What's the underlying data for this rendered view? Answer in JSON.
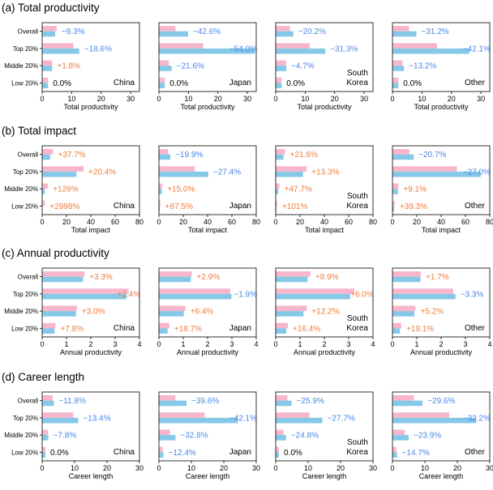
{
  "figure": {
    "row_labels": [
      "Overall",
      "Top 20%",
      "Middle 20%",
      "Low 20%"
    ],
    "colors": {
      "pink": "#f7b6cb",
      "blue": "#86c8e8",
      "negative": "#4a86e8",
      "positive": "#f07b3a",
      "zero": "#000000"
    }
  },
  "chart_data": [
    {
      "type": "bar",
      "title": "(a) Total productivity",
      "xlabel": "Total productivity",
      "xlim": [
        0,
        33
      ],
      "xticks": [
        0,
        10,
        20,
        30
      ],
      "panels": [
        {
          "region": "China",
          "pink": [
            4.9,
            10.6,
            3.4,
            2.0
          ],
          "blue": [
            4.4,
            12.6,
            3.4,
            2.0
          ],
          "changes": [
            "−9.3%",
            "−18.6%",
            "+1.8%",
            "0.0%"
          ]
        },
        {
          "region": "Japan",
          "pink": [
            5.6,
            15.0,
            3.4,
            2.0
          ],
          "blue": [
            9.9,
            32.5,
            4.3,
            2.0
          ],
          "changes": [
            "−42.6%",
            "−54.0%",
            "−21.6%",
            "0.0%"
          ]
        },
        {
          "region": "South Korea",
          "pink": [
            4.8,
            11.5,
            3.5,
            2.0
          ],
          "blue": [
            6.0,
            16.8,
            3.6,
            2.0
          ],
          "changes": [
            "−20.2%",
            "−31.3%",
            "−4.7%",
            "0.0%"
          ]
        },
        {
          "region": "Other",
          "pink": [
            5.6,
            15.1,
            3.4,
            2.0
          ],
          "blue": [
            8.1,
            26.1,
            3.9,
            2.0
          ],
          "changes": [
            "−31.2%",
            "−42.1%",
            "−13.2%",
            "0.0%"
          ]
        }
      ]
    },
    {
      "type": "bar",
      "title": "(b) Total impact",
      "xlabel": "Total impact",
      "xlim": [
        0,
        80
      ],
      "xticks": [
        0,
        20,
        40,
        60,
        80
      ],
      "panels": [
        {
          "region": "China",
          "pink": [
            9.0,
            34.0,
            4.8,
            2.2
          ],
          "blue": [
            6.5,
            28.2,
            2.1,
            0.1
          ],
          "changes": [
            "+37.7%",
            "+20.4%",
            "+126%",
            "+2998%"
          ]
        },
        {
          "region": "Japan",
          "pink": [
            7.5,
            29.5,
            2.8,
            1.2
          ],
          "blue": [
            9.4,
            40.6,
            2.4,
            0.7
          ],
          "changes": [
            "−19.9%",
            "−27.4%",
            "+15.0%",
            "+87.5%"
          ]
        },
        {
          "region": "South Korea",
          "pink": [
            7.8,
            25.5,
            3.1,
            1.3
          ],
          "blue": [
            6.4,
            22.5,
            2.1,
            0.6
          ],
          "changes": [
            "+21.6%",
            "+13.3%",
            "+47.7%",
            "+101%"
          ]
        },
        {
          "region": "Other",
          "pink": [
            13.9,
            53.0,
            4.9,
            1.9
          ],
          "blue": [
            17.5,
            72.6,
            4.5,
            1.4
          ],
          "changes": [
            "−20.7%",
            "−27.0%",
            "+9.1%",
            "+39.3%"
          ]
        }
      ]
    },
    {
      "type": "bar",
      "title": "(c) Annual productivity",
      "xlabel": "Annual productivity",
      "xlim": [
        0,
        4
      ],
      "xticks": [
        0,
        1,
        2,
        3,
        4
      ],
      "panels": [
        {
          "region": "China",
          "pink": [
            1.74,
            3.55,
            1.43,
            0.55
          ],
          "blue": [
            1.68,
            3.47,
            1.39,
            0.51
          ],
          "changes": [
            "+3.3%",
            "+2.4%",
            "+3.0%",
            "+7.8%"
          ]
        },
        {
          "region": "Japan",
          "pink": [
            1.35,
            2.93,
            1.09,
            0.43
          ],
          "blue": [
            1.31,
            2.98,
            1.02,
            0.36
          ],
          "changes": [
            "+2.9%",
            "−1.9%",
            "+6.4%",
            "+18.7%"
          ]
        },
        {
          "region": "South Korea",
          "pink": [
            1.43,
            3.24,
            1.28,
            0.5
          ],
          "blue": [
            1.31,
            3.06,
            1.14,
            0.43
          ],
          "changes": [
            "+8.9%",
            "+6.0%",
            "+12.2%",
            "+16.4%"
          ]
        },
        {
          "region": "Other",
          "pink": [
            1.17,
            2.5,
            0.95,
            0.37
          ],
          "blue": [
            1.15,
            2.59,
            0.9,
            0.31
          ],
          "changes": [
            "+1.7%",
            "−3.3%",
            "+5.2%",
            "+19.1%"
          ]
        }
      ]
    },
    {
      "type": "bar",
      "title": "(d) Career length",
      "xlabel": "Career length",
      "xlim": [
        0,
        30
      ],
      "xticks": [
        0,
        10,
        20,
        30
      ],
      "panels": [
        {
          "region": "China",
          "pink": [
            3.2,
            9.6,
            1.8,
            1.0
          ],
          "blue": [
            3.6,
            11.1,
            1.9,
            1.0
          ],
          "changes": [
            "−11.8%",
            "−13.4%",
            "−7.8%",
            "0.0%"
          ]
        },
        {
          "region": "Japan",
          "pink": [
            5.1,
            14.1,
            3.4,
            1.2
          ],
          "blue": [
            8.5,
            24.3,
            5.1,
            1.4
          ],
          "changes": [
            "−39.6%",
            "−42.1%",
            "−32.8%",
            "−12.4%"
          ]
        },
        {
          "region": "South Korea",
          "pink": [
            3.6,
            10.4,
            2.4,
            1.0
          ],
          "blue": [
            4.9,
            14.4,
            3.2,
            1.0
          ],
          "changes": [
            "−25.9%",
            "−27.7%",
            "−24.8%",
            "0.0%"
          ]
        },
        {
          "region": "Other",
          "pink": [
            6.6,
            17.5,
            3.8,
            1.2
          ],
          "blue": [
            9.3,
            25.8,
            5.0,
            1.4
          ],
          "changes": [
            "−29.6%",
            "−32.2%",
            "−23.9%",
            "−14.7%"
          ]
        }
      ]
    }
  ]
}
